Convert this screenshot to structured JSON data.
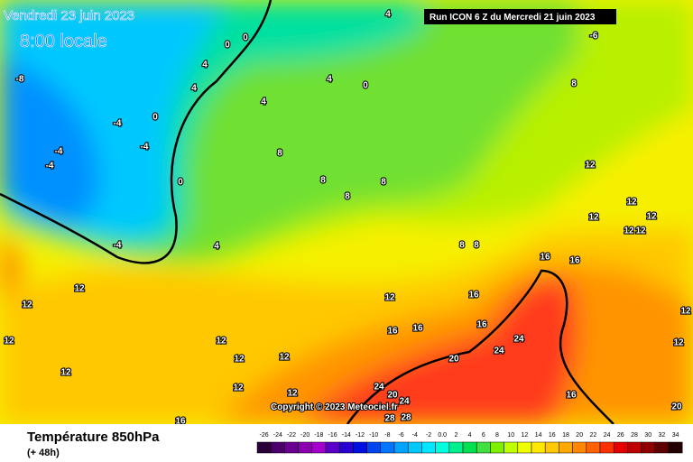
{
  "header": {
    "date": "Vendredi 23 juin 2023",
    "time": "8:00 locale",
    "run": "Run ICON 6 Z du Mercredi 21 juin 2023",
    "copyright": "Copyright © 2023 Meteociel.fr"
  },
  "footer": {
    "title": "Température 850hPa",
    "lead": "(+ 48h)"
  },
  "legend": {
    "ticks": [
      -26,
      -24,
      -22,
      -20,
      -18,
      -16,
      -14,
      -12,
      -10,
      -8,
      -6,
      -4,
      -2,
      {
        "value": 0,
        "label": "0.0"
      },
      2,
      4,
      6,
      8,
      10,
      12,
      14,
      16,
      18,
      20,
      22,
      24,
      26,
      28,
      30,
      32,
      34
    ],
    "colors": [
      "#2a0038",
      "#4b006b",
      "#6a0090",
      "#8a00b0",
      "#a300cc",
      "#5a00c8",
      "#2a00d4",
      "#0010e0",
      "#0045f0",
      "#0075ff",
      "#00a4ff",
      "#00c8ff",
      "#00e6ff",
      "#00ffe0",
      "#00f090",
      "#00e050",
      "#40e040",
      "#80f000",
      "#c0ff00",
      "#f0ff00",
      "#ffe800",
      "#ffc800",
      "#ffa800",
      "#ff8800",
      "#ff6000",
      "#ff3000",
      "#e80000",
      "#c00000",
      "#900000",
      "#600000",
      "#200000"
    ]
  },
  "contour_labels": [
    -8,
    -4,
    -4,
    -4,
    -4,
    -4,
    4,
    4,
    4,
    4,
    4,
    4,
    0,
    0,
    0,
    0,
    0,
    8,
    8,
    8,
    8,
    8,
    8,
    8,
    12,
    12,
    12,
    12,
    12,
    12,
    12,
    12,
    12,
    12,
    12,
    12,
    12,
    12,
    12,
    12,
    16,
    16,
    16,
    16,
    16,
    16,
    24,
    24,
    20,
    24,
    20,
    24,
    28,
    28,
    16,
    16,
    20,
    12,
    12,
    -6
  ]
}
